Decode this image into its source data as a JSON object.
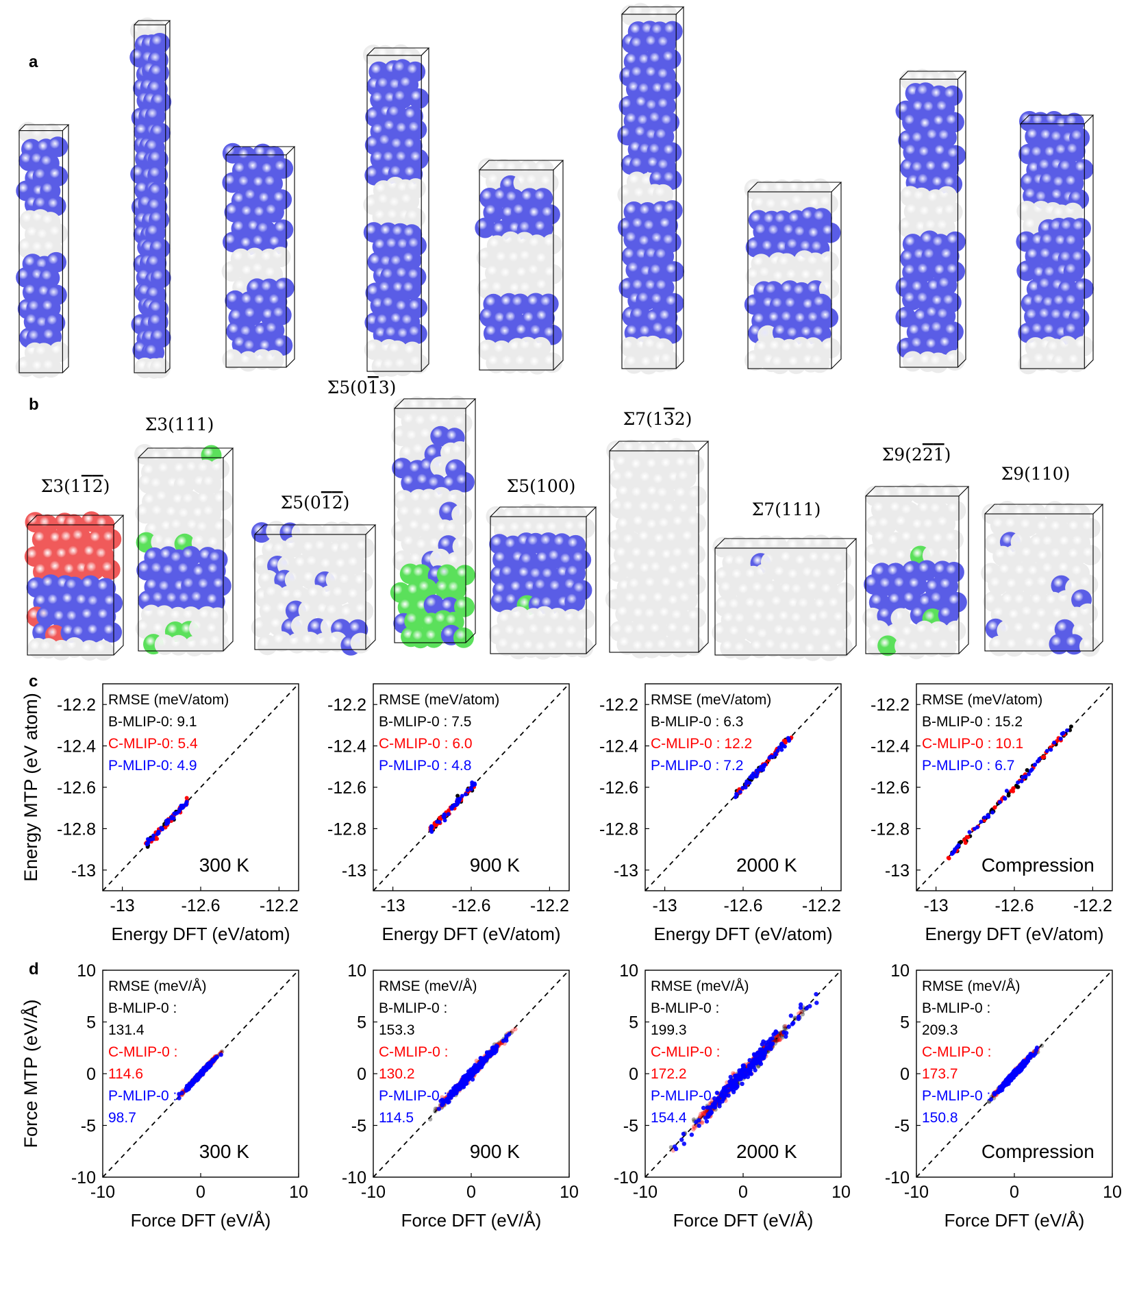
{
  "panel_labels": {
    "a": "a",
    "b": "b",
    "c": "c",
    "d": "d"
  },
  "gb_labels": [
    {
      "main": "Σ3",
      "idx": [
        {
          "d": "1"
        },
        {
          "d": "1",
          "bar": true
        },
        {
          "d": "2",
          "bar": true
        }
      ]
    },
    {
      "main": "Σ3",
      "idx": [
        {
          "d": "1"
        },
        {
          "d": "1"
        },
        {
          "d": "1"
        }
      ]
    },
    {
      "main": "Σ5",
      "idx": [
        {
          "d": "0"
        },
        {
          "d": "1",
          "bar": true
        },
        {
          "d": "2",
          "bar": true
        }
      ]
    },
    {
      "main": "Σ5",
      "idx": [
        {
          "d": "0"
        },
        {
          "d": "1",
          "bar": true
        },
        {
          "d": "3"
        }
      ]
    },
    {
      "main": "Σ5",
      "idx": [
        {
          "d": "1"
        },
        {
          "d": "0"
        },
        {
          "d": "0"
        }
      ]
    },
    {
      "main": "Σ7",
      "idx": [
        {
          "d": "1"
        },
        {
          "d": "3",
          "bar": true
        },
        {
          "d": "2"
        }
      ]
    },
    {
      "main": "Σ7",
      "idx": [
        {
          "d": "1"
        },
        {
          "d": "1"
        },
        {
          "d": "1"
        }
      ]
    },
    {
      "main": "Σ9",
      "idx": [
        {
          "d": "2"
        },
        {
          "d": "2",
          "bar": true
        },
        {
          "d": "1",
          "bar": true
        }
      ]
    },
    {
      "main": "Σ9",
      "idx": [
        {
          "d": "1"
        },
        {
          "d": "1"
        },
        {
          "d": "0"
        }
      ]
    }
  ],
  "colors": {
    "blue_atom": "#5a5de6",
    "white_atom": "#ebebeb",
    "green_atom": "#5be05b",
    "red_atom": "#f05a5a",
    "b_mlip": "#000000",
    "c_mlip": "#ff0000",
    "p_mlip": "#0000ff"
  },
  "chart_data": [
    {
      "panel": "c",
      "type": "scatter",
      "condition": "300 K",
      "xlabel": "Energy DFT (eV/atom)",
      "ylabel": "Energy  MTP (eV atom)",
      "xlim": [
        -13.1,
        -12.1
      ],
      "ylim": [
        -13.1,
        -12.1
      ],
      "xticks": [
        "-13",
        "-12.6",
        "-12.2"
      ],
      "yticks": [
        "-12.2",
        "-12.4",
        "-12.6",
        "-12.8",
        "-13"
      ],
      "rmse_title": "RMSE (meV/atom)",
      "series": [
        {
          "name": "B-MLIP-0",
          "label": "B-MLIP-0: 9.1",
          "range": [
            -12.88,
            -12.67
          ]
        },
        {
          "name": "C-MLIP-0",
          "label": "C-MLIP-0: 5.4",
          "range": [
            -12.88,
            -12.67
          ]
        },
        {
          "name": "P-MLIP-0",
          "label": "P-MLIP-0: 4.9",
          "range": [
            -12.88,
            -12.67
          ]
        }
      ]
    },
    {
      "panel": "c",
      "type": "scatter",
      "condition": "900 K",
      "xlabel": "Energy DFT (eV/atom)",
      "ylabel": "",
      "xlim": [
        -13.1,
        -12.1
      ],
      "ylim": [
        -13.1,
        -12.1
      ],
      "xticks": [
        "-13",
        "-12.6",
        "-12.2"
      ],
      "yticks": [
        "-12.2",
        "-12.4",
        "-12.6",
        "-12.8",
        "-13"
      ],
      "rmse_title": "RMSE (meV/atom)",
      "series": [
        {
          "name": "B-MLIP-0",
          "label": "B-MLIP-0 : 7.5",
          "range": [
            -12.81,
            -12.58
          ]
        },
        {
          "name": "C-MLIP-0",
          "label": "C-MLIP-0 : 6.0",
          "range": [
            -12.81,
            -12.58
          ]
        },
        {
          "name": "P-MLIP-0",
          "label": "P-MLIP-0 : 4.8",
          "range": [
            -12.81,
            -12.58
          ]
        }
      ]
    },
    {
      "panel": "c",
      "type": "scatter",
      "condition": "2000 K",
      "xlabel": "Energy DFT (eV/atom)",
      "ylabel": "",
      "xlim": [
        -13.1,
        -12.1
      ],
      "ylim": [
        -13.1,
        -12.1
      ],
      "xticks": [
        "-13",
        "-12.6",
        "-12.2"
      ],
      "yticks": [
        "-12.2",
        "-12.4",
        "-12.6",
        "-12.8",
        "-13"
      ],
      "rmse_title": "RMSE (meV/atom)",
      "series": [
        {
          "name": "B-MLIP-0",
          "label": "B-MLIP-0 : 6.3",
          "range": [
            -12.64,
            -12.35
          ]
        },
        {
          "name": "C-MLIP-0",
          "label": "C-MLIP-0 : 12.2",
          "range": [
            -12.64,
            -12.35
          ]
        },
        {
          "name": "P-MLIP-0",
          "label": "P-MLIP-0 : 7.2",
          "range": [
            -12.64,
            -12.35
          ]
        }
      ]
    },
    {
      "panel": "c",
      "type": "scatter",
      "condition": "Compression",
      "xlabel": "Energy DFT (eV/atom)",
      "ylabel": "",
      "xlim": [
        -13.1,
        -12.1
      ],
      "ylim": [
        -13.1,
        -12.1
      ],
      "xticks": [
        "-13",
        "-12.6",
        "-12.2"
      ],
      "yticks": [
        "-12.2",
        "-12.4",
        "-12.6",
        "-12.8",
        "-13"
      ],
      "rmse_title": "RMSE (meV/atom)",
      "series": [
        {
          "name": "B-MLIP-0",
          "label": "B-MLIP-0 : 15.2",
          "range": [
            -12.94,
            -12.3
          ]
        },
        {
          "name": "C-MLIP-0",
          "label": "C-MLIP-0 : 10.1",
          "range": [
            -12.94,
            -12.3
          ]
        },
        {
          "name": "P-MLIP-0",
          "label": "P-MLIP-0 : 6.7",
          "range": [
            -12.94,
            -12.3
          ]
        }
      ]
    },
    {
      "panel": "d",
      "type": "scatter",
      "condition": "300 K",
      "xlabel": "Force DFT (eV/Å)",
      "ylabel": "Force MTP (eV/Å)",
      "xlim": [
        -10,
        10
      ],
      "ylim": [
        -10,
        10
      ],
      "xticks": [
        "-10",
        "0",
        "10"
      ],
      "yticks": [
        "10",
        "5",
        "0",
        "-5",
        "-10"
      ],
      "rmse_title": "RMSE (meV/Å)",
      "series": [
        {
          "name": "B-MLIP-0",
          "label": "B-MLIP-0 :",
          "value": "131.4",
          "range": [
            -2.2,
            2.2
          ]
        },
        {
          "name": "C-MLIP-0",
          "label": "C-MLIP-0 :",
          "value": "114.6",
          "range": [
            -2.2,
            2.2
          ]
        },
        {
          "name": "P-MLIP-0",
          "label": "P-MLIP-0 :",
          "value": "98.7",
          "range": [
            -2.2,
            2.2
          ]
        }
      ]
    },
    {
      "panel": "d",
      "type": "scatter",
      "condition": "900 K",
      "xlabel": "Force DFT (eV/Å)",
      "ylabel": "",
      "xlim": [
        -10,
        10
      ],
      "ylim": [
        -10,
        10
      ],
      "xticks": [
        "-10",
        "0",
        "10"
      ],
      "yticks": [
        "10",
        "5",
        "0",
        "-5",
        "-10"
      ],
      "rmse_title": "RMSE (meV/Å)",
      "series": [
        {
          "name": "B-MLIP-0",
          "label": "B-MLIP-0 :",
          "value": "153.3",
          "range": [
            -4.5,
            4.5
          ]
        },
        {
          "name": "C-MLIP-0",
          "label": "C-MLIP-0 :",
          "value": "130.2",
          "range": [
            -4.5,
            4.5
          ]
        },
        {
          "name": "P-MLIP-0",
          "label": "P-MLIP-0 :",
          "value": "114.5",
          "range": [
            -4.5,
            4.5
          ]
        }
      ]
    },
    {
      "panel": "d",
      "type": "scatter",
      "condition": "2000 K",
      "xlabel": "Force DFT (eV/Å)",
      "ylabel": "",
      "xlim": [
        -10,
        10
      ],
      "ylim": [
        -10,
        10
      ],
      "xticks": [
        "-10",
        "0",
        "10"
      ],
      "yticks": [
        "10",
        "5",
        "0",
        "-5",
        "-10"
      ],
      "rmse_title": "RMSE (meV/Å)",
      "series": [
        {
          "name": "B-MLIP-0",
          "label": "B-MLIP-0 :",
          "value": "199.3",
          "range": [
            -7.5,
            7.5
          ]
        },
        {
          "name": "C-MLIP-0",
          "label": "C-MLIP-0 :",
          "value": "172.2",
          "range": [
            -7.5,
            7.5
          ]
        },
        {
          "name": "P-MLIP-0",
          "label": "P-MLIP-0 :",
          "value": "154.4",
          "range": [
            -7.5,
            7.5
          ]
        }
      ]
    },
    {
      "panel": "d",
      "type": "scatter",
      "condition": "Compression",
      "xlabel": "Force DFT (eV/Å)",
      "ylabel": "",
      "xlim": [
        -10,
        10
      ],
      "ylim": [
        -10,
        10
      ],
      "xticks": [
        "-10",
        "0",
        "10"
      ],
      "yticks": [
        "10",
        "5",
        "0",
        "-5",
        "-10"
      ],
      "rmse_title": "RMSE (meV/Å)",
      "series": [
        {
          "name": "B-MLIP-0",
          "label": "B-MLIP-0 :",
          "value": "209.3",
          "range": [
            -2.8,
            2.8
          ]
        },
        {
          "name": "C-MLIP-0",
          "label": "C-MLIP-0 :",
          "value": "173.7",
          "range": [
            -2.8,
            2.8
          ]
        },
        {
          "name": "P-MLIP-0",
          "label": "P-MLIP-0 :",
          "value": "150.8",
          "range": [
            -2.8,
            2.8
          ]
        }
      ]
    }
  ]
}
